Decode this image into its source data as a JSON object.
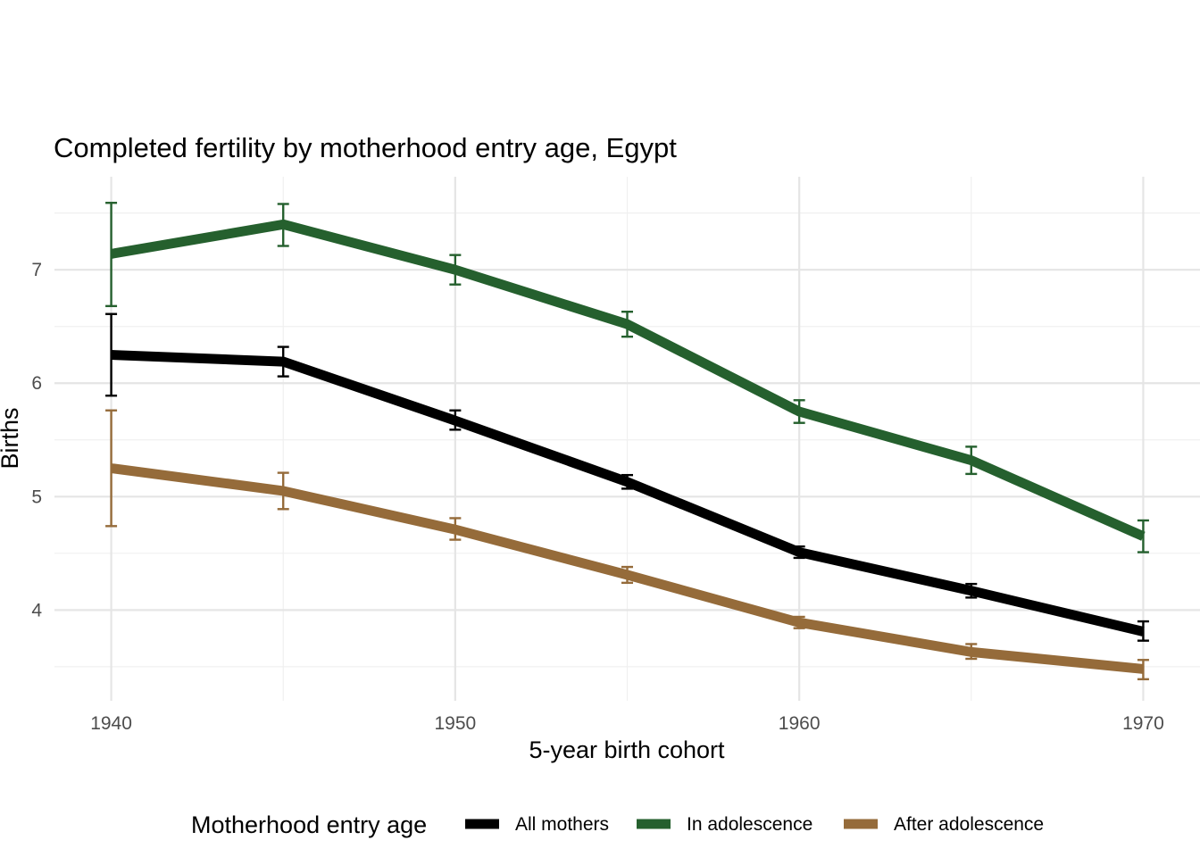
{
  "chart_data": {
    "type": "line",
    "title": "Completed fertility by motherhood entry age,  Egypt",
    "xlabel": "5-year birth cohort",
    "ylabel": "Births",
    "x": [
      1940,
      1945,
      1950,
      1955,
      1960,
      1965,
      1970
    ],
    "xlim": [
      1938.35,
      1971.65
    ],
    "ylim": [
      3.2,
      7.82
    ],
    "x_ticks": [
      1940,
      1950,
      1960,
      1970
    ],
    "y_ticks": [
      4,
      5,
      6,
      7
    ],
    "grid": true,
    "legend": {
      "title": "Motherhood entry age",
      "position": "bottom"
    },
    "series": [
      {
        "name": "All mothers",
        "color": "#000000",
        "values": [
          6.25,
          6.19,
          5.67,
          5.13,
          4.51,
          4.17,
          3.81
        ],
        "lower": [
          5.89,
          6.06,
          5.59,
          5.07,
          4.46,
          4.11,
          3.73
        ],
        "upper": [
          6.61,
          6.32,
          5.76,
          5.19,
          4.56,
          4.23,
          3.9
        ]
      },
      {
        "name": "In adolescence",
        "color": "#25602e",
        "values": [
          7.14,
          7.4,
          7.0,
          6.52,
          5.75,
          5.32,
          4.65
        ],
        "lower": [
          6.68,
          7.21,
          6.87,
          6.41,
          5.65,
          5.2,
          4.51
        ],
        "upper": [
          7.59,
          7.58,
          7.13,
          6.63,
          5.85,
          5.44,
          4.79
        ]
      },
      {
        "name": "After adolescence",
        "color": "#956b3a",
        "values": [
          5.25,
          5.05,
          4.71,
          4.31,
          3.89,
          3.63,
          3.48
        ],
        "lower": [
          4.74,
          4.89,
          4.62,
          4.24,
          3.84,
          3.57,
          3.39
        ],
        "upper": [
          5.76,
          5.21,
          4.81,
          4.38,
          3.94,
          3.7,
          3.56
        ]
      }
    ]
  }
}
